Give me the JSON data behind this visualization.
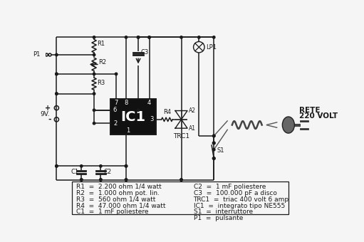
{
  "bg_color": "#f5f5f5",
  "line_color": "#1a1a1a",
  "ic_fill": "#111111",
  "ic_text_color": "#ffffff",
  "legend_col1": [
    "R1  =  2.200 ohm 1/4 watt",
    "R2  =  1.000 ohm pot. lin.",
    "R3  =  560 ohm 1/4 watt",
    "R4  =  47.000 ohm 1/4 watt",
    "C1  =  1 mF poliestere"
  ],
  "legend_col2": [
    "C2  =  1 mF poliestere",
    "C3  =  100.000 pF a disco",
    "TRC1  =  triac 400 volt 6 amp",
    "IC1  =  integrato tipo NE555",
    "S1  =  interruttore",
    "P1  =  pulsante"
  ],
  "font_size_legend": 6.5,
  "rete_text_1": "RETE",
  "rete_text_2": "220 VOLT",
  "label_P1": "P1",
  "label_9V": "9V.",
  "label_R1": "R1",
  "label_R2": "R2",
  "label_R3": "R3",
  "label_R4": "R4",
  "label_C1": "C1",
  "label_C2": "C2",
  "label_C3": "C3",
  "label_LP1": "LP1",
  "label_TRC1": "TRC1",
  "label_IC1": "IC1",
  "label_S1": "S1",
  "label_A1": "A1",
  "label_A2": "A2",
  "ic_pins": [
    "7",
    "8",
    "4",
    "6",
    "2",
    "3",
    "1"
  ]
}
